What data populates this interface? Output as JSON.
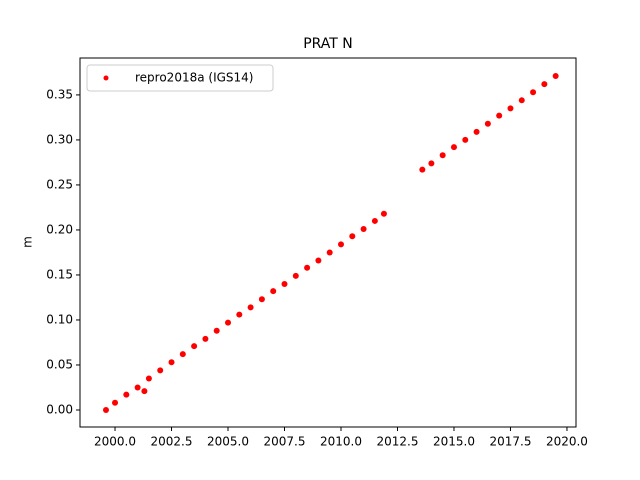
{
  "chart_data": {
    "type": "scatter",
    "title": "PRAT N",
    "ylabel": "m",
    "series": [
      {
        "name": "repro2018a (IGS14)",
        "color": "#ff0000",
        "x": [
          1999.6,
          2000.0,
          2000.5,
          2001.0,
          2001.3,
          2001.5,
          2002.0,
          2002.5,
          2003.0,
          2003.5,
          2004.0,
          2004.5,
          2005.0,
          2005.5,
          2006.0,
          2006.5,
          2007.0,
          2007.5,
          2008.0,
          2008.5,
          2009.0,
          2009.5,
          2010.0,
          2010.5,
          2011.0,
          2011.5,
          2011.9,
          2013.6,
          2014.0,
          2014.5,
          2015.0,
          2015.5,
          2016.0,
          2016.5,
          2017.0,
          2017.5,
          2018.0,
          2018.5,
          2019.0,
          2019.5
        ],
        "values": [
          0.0,
          0.008,
          0.017,
          0.025,
          0.021,
          0.035,
          0.044,
          0.053,
          0.062,
          0.071,
          0.079,
          0.088,
          0.097,
          0.106,
          0.114,
          0.123,
          0.132,
          0.14,
          0.149,
          0.158,
          0.166,
          0.175,
          0.184,
          0.193,
          0.201,
          0.21,
          0.218,
          0.267,
          0.274,
          0.283,
          0.292,
          0.3,
          0.309,
          0.318,
          0.327,
          0.335,
          0.344,
          0.353,
          0.362,
          0.371
        ]
      }
    ],
    "xlim": [
      1998.45,
      2020.4
    ],
    "ylim": [
      -0.0189,
      0.391
    ],
    "xticks": [
      {
        "value": 2000,
        "label": "2000.0"
      },
      2002.5,
      {
        "value": 2005,
        "label": "2005.0"
      },
      2007.5,
      {
        "value": 2010,
        "label": "2010.0"
      },
      2012.5,
      {
        "value": 2015,
        "label": "2015.0"
      },
      2017.5,
      {
        "value": 2020,
        "label": "2020.0"
      }
    ],
    "yticks": [
      {
        "value": 0,
        "label": "0.00"
      },
      0.05,
      {
        "value": 0.1,
        "label": "0.10"
      },
      0.15,
      {
        "value": 0.2,
        "label": "0.20"
      },
      0.25,
      {
        "value": 0.3,
        "label": "0.30"
      },
      0.35
    ],
    "grid": false,
    "legend": "upper left"
  }
}
